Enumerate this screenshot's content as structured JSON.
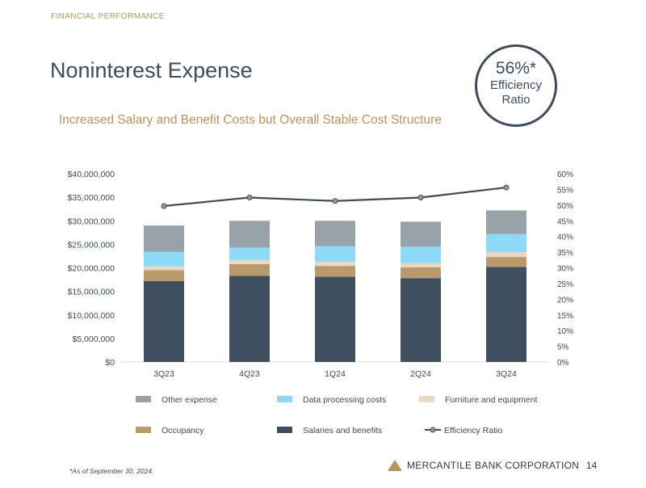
{
  "header": {
    "section": "FINANCIAL PERFORMANCE",
    "title": "Noninterest Expense",
    "subtitle": "Increased Salary and Benefit Costs but Overall Stable Cost Structure"
  },
  "badge": {
    "value": "56%*",
    "label_line1": "Efficiency",
    "label_line2": "Ratio"
  },
  "footer": {
    "footnote": "*As of September 30, 2024.",
    "company": "MERCANTILE BANK CORPORATION",
    "page": "14"
  },
  "colors": {
    "other_expense": "#97a1a8",
    "data_processing": "#8ed8f8",
    "furniture": "#e9d9c2",
    "occupancy": "#b99a6b",
    "salaries": "#3f4f5f",
    "efficiency_line": "#3e4b5c",
    "efficiency_marker": "#a39a86",
    "accent": "#b8935c"
  },
  "chart_data": {
    "type": "bar",
    "stacked": true,
    "categories": [
      "3Q23",
      "4Q23",
      "1Q24",
      "2Q24",
      "3Q24"
    ],
    "series": [
      {
        "name": "Salaries and benefits",
        "values": [
          17200000,
          18300000,
          18100000,
          17800000,
          20200000
        ],
        "color_key": "salaries"
      },
      {
        "name": "Occupancy",
        "values": [
          2300000,
          2500000,
          2300000,
          2300000,
          2100000
        ],
        "color_key": "occupancy"
      },
      {
        "name": "Furniture and equipment",
        "values": [
          800000,
          900000,
          900000,
          900000,
          1000000
        ],
        "color_key": "furniture"
      },
      {
        "name": "Data processing costs",
        "values": [
          3100000,
          2600000,
          3300000,
          3500000,
          3900000
        ],
        "color_key": "data_processing"
      },
      {
        "name": "Other expense",
        "values": [
          5600000,
          5700000,
          5400000,
          5300000,
          5000000
        ],
        "color_key": "other_expense"
      }
    ],
    "line_series": {
      "name": "Efficiency Ratio",
      "values": [
        49.7,
        52.4,
        51.3,
        52.4,
        55.6
      ],
      "axis": "right"
    },
    "ylim": [
      0,
      40000000
    ],
    "y_ticks": [
      "$0",
      "$5,000,000",
      "$10,000,000",
      "$15,000,000",
      "$20,000,000",
      "$25,000,000",
      "$30,000,000",
      "$35,000,000",
      "$40,000,000"
    ],
    "y2lim": [
      0,
      60
    ],
    "y2_ticks": [
      "0%",
      "5%",
      "10%",
      "15%",
      "20%",
      "25%",
      "30%",
      "35%",
      "40%",
      "45%",
      "50%",
      "55%",
      "60%"
    ],
    "legend_position": "bottom",
    "legend": [
      {
        "label": "Other expense",
        "type": "box",
        "color_key": "other_expense"
      },
      {
        "label": "Data processing costs",
        "type": "box",
        "color_key": "data_processing"
      },
      {
        "label": "Furniture and equipment",
        "type": "box",
        "color_key": "furniture"
      },
      {
        "label": "Occupancy",
        "type": "box",
        "color_key": "occupancy"
      },
      {
        "label": "Salaries and benefits",
        "type": "box",
        "color_key": "salaries"
      },
      {
        "label": "Efficiency Ratio",
        "type": "line",
        "color_key": "efficiency_line"
      }
    ]
  }
}
